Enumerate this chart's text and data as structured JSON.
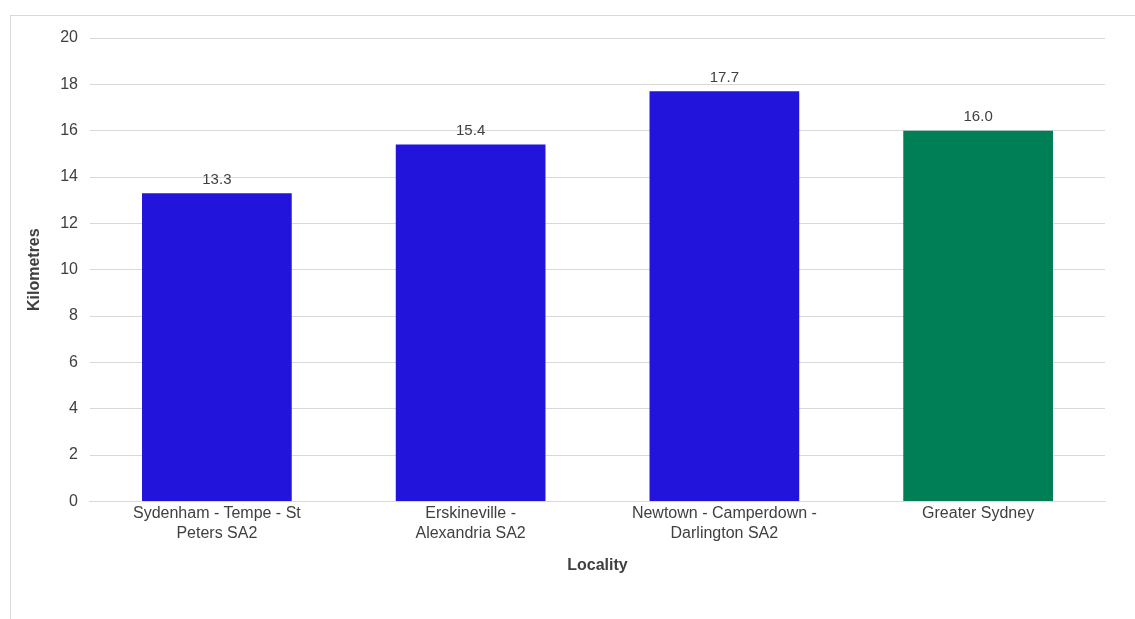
{
  "chart_data": {
    "type": "bar",
    "xlabel": "Locality",
    "ylabel": "Kilometres",
    "categories": [
      "Sydenham - Tempe - St Peters SA2",
      "Erskineville - Alexandria SA2",
      "Newtown - Camperdown - Darlington SA2",
      "Greater Sydney"
    ],
    "values": [
      13.3,
      15.4,
      17.7,
      16.0
    ],
    "colors": [
      "#2314dc",
      "#2314dc",
      "#2314dc",
      "#007f56"
    ],
    "value_labels": [
      "13.3",
      "15.4",
      "17.7",
      "16.0"
    ],
    "ylim": [
      0,
      20
    ],
    "yticks": [
      0,
      2,
      4,
      6,
      8,
      10,
      12,
      14,
      16,
      18,
      20
    ],
    "grid": "y",
    "legend": false
  }
}
